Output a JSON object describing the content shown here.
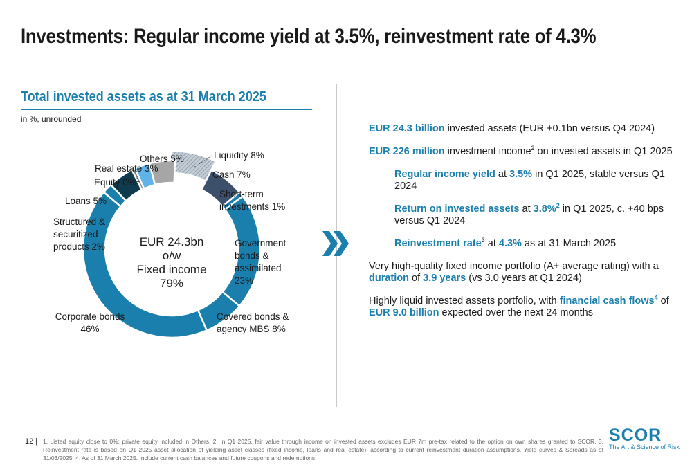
{
  "header": {
    "title": "Investments: Regular income yield at 3.5%, reinvestment rate of 4.3%"
  },
  "left_panel": {
    "subtitle": "Total invested assets as at 31 March 2025",
    "unit_note": "in %, unrounded"
  },
  "chart_data": {
    "type": "pie",
    "title": "Total invested assets as at 31 March 2025",
    "unit": "in %, unrounded",
    "center_label": [
      "EUR 24.3bn",
      "o/w",
      "Fixed income",
      "79%"
    ],
    "slices": [
      {
        "label": "Liquidity",
        "value": 8,
        "color": "#a9b6c2",
        "pattern": "hatched",
        "exploded": true
      },
      {
        "label": "Cash",
        "value": 7,
        "color": "#3c4f6b",
        "pattern": "solid",
        "exploded": false
      },
      {
        "label": "Short-term investments",
        "value": 1,
        "color": "#1b7fae",
        "pattern": "solid",
        "exploded": false
      },
      {
        "label": "Government bonds & assimilated",
        "value": 23,
        "color": "#1b7fae",
        "pattern": "solid",
        "exploded": false
      },
      {
        "label": "Covered bonds & agency MBS",
        "value": 8,
        "color": "#1b7fae",
        "pattern": "solid",
        "exploded": false
      },
      {
        "label": "Corporate bonds",
        "value": 46,
        "color": "#1b7fae",
        "pattern": "solid",
        "exploded": false
      },
      {
        "label": "Structured & securitized products",
        "value": 2,
        "color": "#1b7fae",
        "pattern": "solid",
        "exploded": false
      },
      {
        "label": "Loans",
        "value": 5,
        "color": "#0f3b4f",
        "pattern": "solid",
        "exploded": false
      },
      {
        "label": "Equity",
        "value": 0,
        "color": "#7f7f7f",
        "pattern": "solid",
        "exploded": false
      },
      {
        "label": "Real estate",
        "value": 3,
        "color": "#5fb3e8",
        "pattern": "solid",
        "exploded": false
      },
      {
        "label": "Others",
        "value": 5,
        "color": "#a6a6a6",
        "pattern": "solid",
        "exploded": false
      }
    ],
    "labels": {
      "liquidity": [
        "Liquidity 8%"
      ],
      "cash": [
        "Cash 7%"
      ],
      "short_term": [
        "Short-term",
        "investments 1%"
      ],
      "government": [
        "Government",
        "bonds &",
        "assimilated",
        "23%"
      ],
      "covered": [
        "Covered bonds &",
        "agency MBS 8%"
      ],
      "corporate": [
        "Corporate bonds",
        "46%"
      ],
      "structured": [
        "Structured &",
        "securitized",
        "products 2%"
      ],
      "loans": [
        "Loans 5%"
      ],
      "equity": [
        "Equity 0%",
        "1"
      ],
      "real_estate": [
        "Real estate 3%"
      ],
      "others": [
        "Others 5%"
      ]
    }
  },
  "bullets": [
    {
      "level": 1,
      "parts": [
        {
          "t": "EUR 24.3 billion",
          "hl": true
        },
        {
          "t": " invested assets (EUR +0.1bn versus Q4 2024)"
        }
      ]
    },
    {
      "level": 1,
      "parts": [
        {
          "t": "EUR 226 million",
          "hl": true
        },
        {
          "t": " investment income"
        },
        {
          "t": "2",
          "sup": true
        },
        {
          "t": " on invested assets in Q1 2025"
        }
      ]
    },
    {
      "level": 2,
      "parts": [
        {
          "t": "Regular income yield",
          "hl": true
        },
        {
          "t": " at "
        },
        {
          "t": "3.5%",
          "hl": true
        },
        {
          "t": " in Q1 2025, stable versus Q1 2024"
        }
      ]
    },
    {
      "level": 2,
      "parts": [
        {
          "t": "Return on invested assets",
          "hl": true
        },
        {
          "t": " at "
        },
        {
          "t": "3.8%",
          "hl": true
        },
        {
          "t": "2",
          "sup": true,
          "hl": true
        },
        {
          "t": " in Q1 2025, c. +40 bps versus Q1 2024"
        }
      ]
    },
    {
      "level": 2,
      "parts": [
        {
          "t": "Reinvestment rate",
          "hl": true
        },
        {
          "t": "3",
          "sup": true
        },
        {
          "t": " at "
        },
        {
          "t": "4.3%",
          "hl": true
        },
        {
          "t": " as at 31 March 2025"
        }
      ]
    },
    {
      "level": 1,
      "parts": [
        {
          "t": "Very high-quality fixed income portfolio (A+ average rating) with a "
        },
        {
          "t": "duration",
          "hl": true
        },
        {
          "t": " of "
        },
        {
          "t": "3.9 years",
          "hl": true
        },
        {
          "t": " (vs 3.0 years at Q1 2024)"
        }
      ]
    },
    {
      "level": 1,
      "parts": [
        {
          "t": "Highly liquid invested assets portfolio, with "
        },
        {
          "t": "financial cash flows",
          "hl": true
        },
        {
          "t": "4",
          "sup": true,
          "hl": true
        },
        {
          "t": " of "
        },
        {
          "t": "EUR 9.0 billion",
          "hl": true
        },
        {
          "t": " expected over the next 24 months"
        }
      ]
    }
  ],
  "footer": {
    "page_number": "12 |",
    "footnote": "1. Listed equity close to 0%; private equity included in Others. 2. In Q1 2025, fair value through income on invested assets excludes EUR 7m pre-tax related to the option on own shares granted to SCOR. 3. Reinvestment rate is based on Q1 2025 asset allocation of yielding asset classes (fixed income, loans and real estate), according to current reinvestment duration assumptions. Yield curves & Spreads as of 31/03/2025. 4. As of 31 March 2025. Include current cash balances and future coupons and redemptions.",
    "logo_word": "SCOR",
    "logo_tagline": "The Art & Science of Risk"
  },
  "colors": {
    "accent": "#1b7fae",
    "text": "#1a1a1a"
  }
}
